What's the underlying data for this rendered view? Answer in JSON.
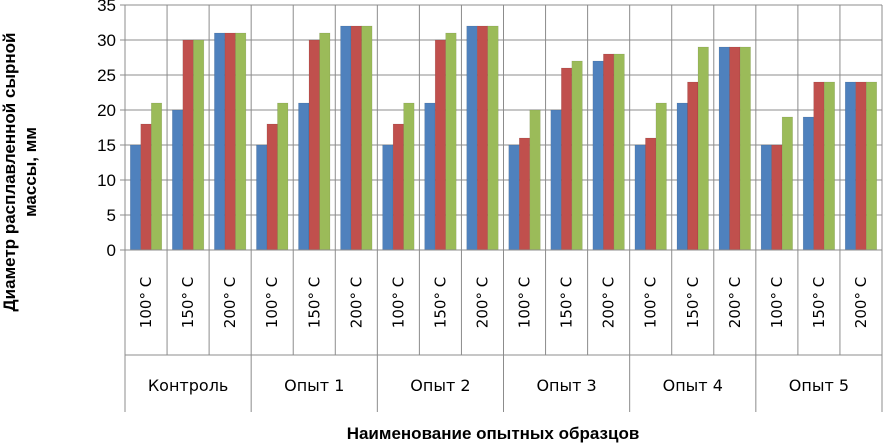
{
  "chart_data": {
    "type": "bar",
    "title": "",
    "ylabel_line1": "Диаметр расплавленной сырной",
    "ylabel_line2": "массы, мм",
    "xlabel": "Наименование опытных образцов",
    "ylim": [
      0,
      35
    ],
    "yticks": [
      0,
      5,
      10,
      15,
      20,
      25,
      30,
      35
    ],
    "grid": true,
    "legend": "none",
    "groups": [
      {
        "label": "Контроль",
        "subcategories": [
          "100° C",
          "150° C",
          "200° C"
        ]
      },
      {
        "label": "Опыт 1",
        "subcategories": [
          "100° C",
          "150° C",
          "200° C"
        ]
      },
      {
        "label": "Опыт 2",
        "subcategories": [
          "100° C",
          "150° C",
          "200° C"
        ]
      },
      {
        "label": "Опыт 3",
        "subcategories": [
          "100° C",
          "150° C",
          "200° C"
        ]
      },
      {
        "label": "Опыт 4",
        "subcategories": [
          "100° C",
          "150° C",
          "200° C"
        ]
      },
      {
        "label": "Опыт 5",
        "subcategories": [
          "100° C",
          "150° C",
          "200° C"
        ]
      }
    ],
    "series": [
      {
        "color": "#4f81bd",
        "values": [
          15,
          20,
          31,
          15,
          21,
          32,
          15,
          21,
          32,
          15,
          20,
          27,
          15,
          21,
          29,
          15,
          19,
          24
        ]
      },
      {
        "color": "#c0504d",
        "values": [
          18,
          30,
          31,
          18,
          30,
          32,
          18,
          30,
          32,
          16,
          26,
          28,
          16,
          24,
          29,
          15,
          24,
          24
        ]
      },
      {
        "color": "#9bbb59",
        "values": [
          21,
          30,
          31,
          21,
          31,
          32,
          21,
          31,
          32,
          20,
          27,
          28,
          21,
          29,
          29,
          19,
          24,
          24
        ]
      }
    ]
  }
}
